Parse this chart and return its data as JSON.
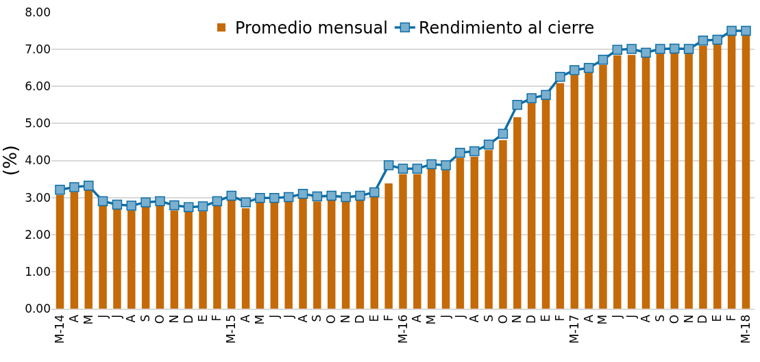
{
  "chart_data": {
    "type": "bar",
    "ylabel": "(%)",
    "categories": [
      "M-14",
      "A",
      "M",
      "J",
      "J",
      "A",
      "S",
      "O",
      "N",
      "D",
      "E",
      "F",
      "M-15",
      "A",
      "M",
      "J",
      "J",
      "A",
      "S",
      "O",
      "N",
      "D",
      "E",
      "F",
      "M-16",
      "A",
      "M",
      "J",
      "J",
      "A",
      "S",
      "O",
      "N",
      "D",
      "E",
      "F",
      "M-17",
      "A",
      "M",
      "J",
      "J",
      "A",
      "S",
      "O",
      "N",
      "D",
      "E",
      "F",
      "M-18"
    ],
    "series": [
      {
        "name": "Promedio mensual",
        "color": "#c46a08",
        "values": [
          3.07,
          3.15,
          3.23,
          2.78,
          2.69,
          2.65,
          2.74,
          2.78,
          2.65,
          2.61,
          2.63,
          2.78,
          2.94,
          2.71,
          2.87,
          2.87,
          2.89,
          2.98,
          2.89,
          2.94,
          2.89,
          2.94,
          3.01,
          3.38,
          3.63,
          3.63,
          3.78,
          3.74,
          4.07,
          4.1,
          4.28,
          4.55,
          5.17,
          5.55,
          5.64,
          6.09,
          6.31,
          6.37,
          6.58,
          6.84,
          6.85,
          6.79,
          6.88,
          6.91,
          6.9,
          7.1,
          7.13,
          7.4,
          7.37
        ]
      },
      {
        "name": "Rendimiento al cierre",
        "type": "line",
        "color": "#0e6ea6",
        "values": [
          3.21,
          3.28,
          3.32,
          2.9,
          2.81,
          2.78,
          2.87,
          2.9,
          2.79,
          2.74,
          2.76,
          2.9,
          3.05,
          2.87,
          2.99,
          2.99,
          3.01,
          3.1,
          3.03,
          3.05,
          3.01,
          3.05,
          3.14,
          3.87,
          3.78,
          3.78,
          3.9,
          3.87,
          4.21,
          4.25,
          4.43,
          4.72,
          5.5,
          5.68,
          5.77,
          6.26,
          6.44,
          6.5,
          6.72,
          6.99,
          7.01,
          6.91,
          7.01,
          7.02,
          7.01,
          7.24,
          7.26,
          7.5,
          7.5
        ]
      }
    ],
    "ylim": [
      0,
      8
    ],
    "yticks": [
      {
        "value": 0,
        "label": "0.00"
      },
      {
        "value": 1,
        "label": "1.00"
      },
      {
        "value": 2,
        "label": "2.00"
      },
      {
        "value": 3,
        "label": "3.00"
      },
      {
        "value": 4,
        "label": "4.00"
      },
      {
        "value": 5,
        "label": "5.00"
      },
      {
        "value": 6,
        "label": "6.00"
      },
      {
        "value": 7,
        "label": "7.00"
      },
      {
        "value": 8,
        "label": "8.00"
      }
    ],
    "grid": "y",
    "legend": "top",
    "marker": "square",
    "line_style": "solid"
  }
}
